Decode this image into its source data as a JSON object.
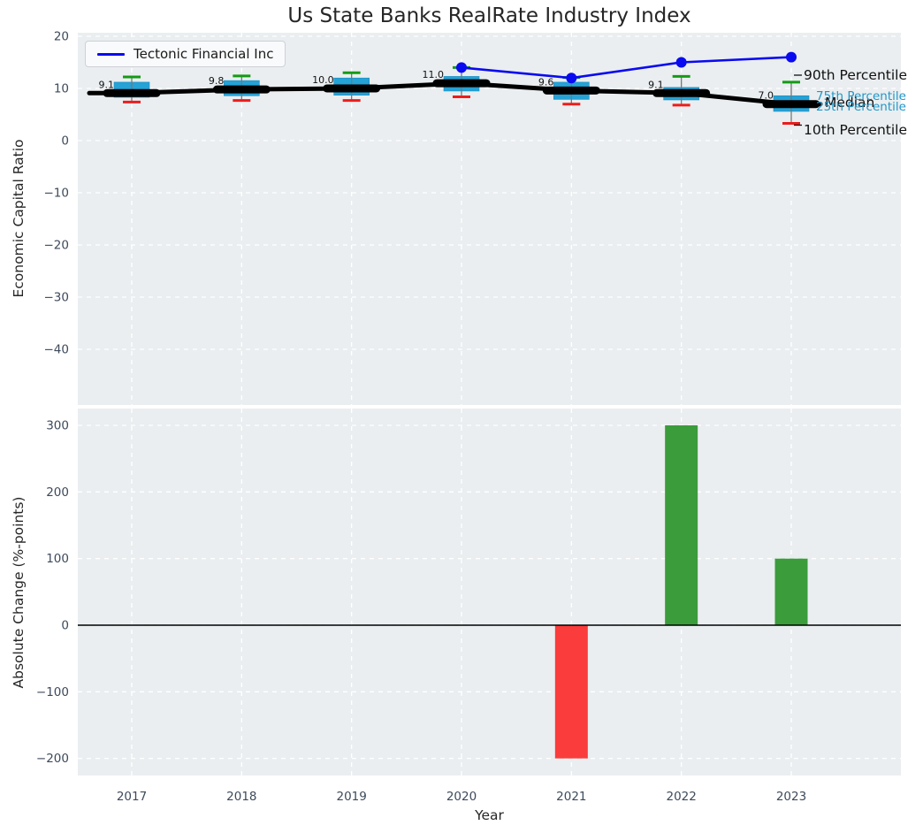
{
  "title": "Us State Banks RealRate Industry Index",
  "legend": {
    "label": "Tectonic Financial Inc"
  },
  "colors": {
    "figure_background": "#ffffff",
    "axes_background": "#eaeef0",
    "grid": "#ffffff",
    "box_fill": "#25a2d6",
    "box_edge": "#1b8cbf",
    "whisker": "#777777",
    "cap_90th": "#149b14",
    "cap_10th": "#ed1c1c",
    "median_line": "#000000",
    "company_line": "#0a0af0",
    "bar_up": "#3b9c3c",
    "bar_down": "#fa3c3c",
    "zero_line": "#000000",
    "tick_text": "#3d4a5a",
    "data_label_text": "#111111",
    "pct_label_blue": "#2196c8"
  },
  "chart_data": [
    {
      "type": "boxplot+line",
      "title": "Us State Banks RealRate Industry Index",
      "ylabel": "Economic Capital Ratio",
      "ylim": [
        -50.7,
        20.7
      ],
      "yticks": [
        20,
        10,
        0,
        -10,
        -20,
        -30,
        -40
      ],
      "ytick_labels": [
        "20",
        "10",
        "0",
        "−10",
        "−20",
        "−30",
        "−40"
      ],
      "grid": "dashed-white",
      "years": [
        2017,
        2018,
        2019,
        2020,
        2021,
        2022,
        2023
      ],
      "boxes": [
        {
          "year": 2017,
          "p10": 7.4,
          "p25": 8.3,
          "median": 9.1,
          "p75": 11.2,
          "p90": 12.2,
          "label": "9.1"
        },
        {
          "year": 2018,
          "p10": 7.7,
          "p25": 8.6,
          "median": 9.8,
          "p75": 11.5,
          "p90": 12.4,
          "label": "9.8"
        },
        {
          "year": 2019,
          "p10": 7.7,
          "p25": 8.7,
          "median": 10.0,
          "p75": 12.0,
          "p90": 13.0,
          "label": "10.0"
        },
        {
          "year": 2020,
          "p10": 8.4,
          "p25": 9.5,
          "median": 11.0,
          "p75": 12.3,
          "p90": 14.0,
          "label": "11.0"
        },
        {
          "year": 2021,
          "p10": 7.0,
          "p25": 7.9,
          "median": 9.6,
          "p75": 11.2,
          "p90": 12.1,
          "label": "9.6"
        },
        {
          "year": 2022,
          "p10": 6.8,
          "p25": 7.8,
          "median": 9.1,
          "p75": 10.2,
          "p90": 12.3,
          "label": "9.1"
        },
        {
          "year": 2023,
          "p10": 3.3,
          "p25": 5.6,
          "median": 7.0,
          "p75": 8.6,
          "p90": 11.2,
          "label": "7.0"
        }
      ],
      "company_line": {
        "name": "Tectonic Financial Inc",
        "x": [
          2020,
          2021,
          2022,
          2023
        ],
        "y": [
          14,
          12,
          15,
          16
        ]
      },
      "annotations": {
        "p90": "90th Percentile",
        "p75": "75th Percentile",
        "median": "Median",
        "p25": "25th Percentile",
        "p10": "10th Percentile"
      }
    },
    {
      "type": "bar",
      "ylabel": "Absolute Change (%-points)",
      "xlabel": "Year",
      "categories": [
        "2017",
        "2018",
        "2019",
        "2020",
        "2021",
        "2022",
        "2023"
      ],
      "values": [
        null,
        null,
        null,
        null,
        -200,
        300,
        100
      ],
      "ylim": [
        -225,
        325
      ],
      "yticks": [
        300,
        200,
        100,
        0,
        -100,
        -200
      ],
      "ytick_labels": [
        "300",
        "200",
        "100",
        "0",
        "−100",
        "−200"
      ],
      "grid": "dashed-white",
      "zero_line": 0
    }
  ]
}
